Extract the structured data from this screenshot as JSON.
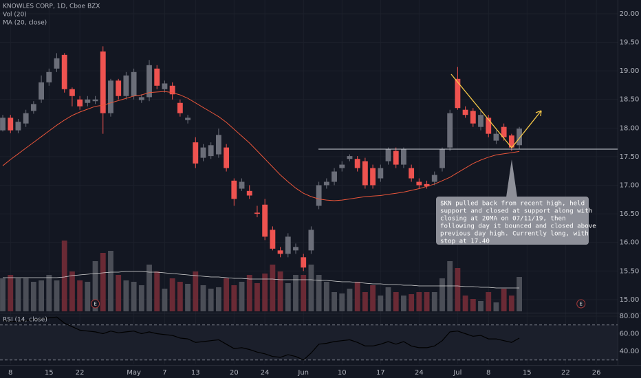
{
  "chart_data": {
    "type": "candlestick",
    "title": "KNOWLES CORP, 1D, Cboe BZX",
    "volume_label": "Vol (20)",
    "ma_label": "MA (20, close)",
    "rsi_label": "RSI (14, close)",
    "up_color": "#6b6e79",
    "down_color": "#ef5350",
    "vol_up_color": "#4b4e57",
    "vol_down_color": "#6a2a35",
    "ma_color": "#e8553a",
    "vol_ma_color": "#d8d8d8",
    "rsi_color": "#000000",
    "grid": true,
    "xlim": [
      -0.36,
      79.75
    ],
    "xticks": [
      {
        "value": 1,
        "label": "8"
      },
      {
        "value": 6,
        "label": "15"
      },
      {
        "value": 10,
        "label": "22"
      },
      {
        "value": 17,
        "label": "May"
      },
      {
        "value": 21,
        "label": "7"
      },
      {
        "value": 25,
        "label": "13"
      },
      {
        "value": 30,
        "label": "20"
      },
      {
        "value": 34,
        "label": "24"
      },
      {
        "value": 39,
        "label": "Jun"
      },
      {
        "value": 44,
        "label": "10"
      },
      {
        "value": 49,
        "label": "17"
      },
      {
        "value": 54,
        "label": "24"
      },
      {
        "value": 59,
        "label": "Jul"
      },
      {
        "value": 63,
        "label": "8"
      },
      {
        "value": 68,
        "label": "15"
      },
      {
        "value": 73,
        "label": "22"
      },
      {
        "value": 77,
        "label": "26"
      }
    ],
    "ylim": [
      14.77,
      20.24
    ],
    "yticks": [
      {
        "value": 15,
        "label": "15.00"
      },
      {
        "value": 15.5,
        "label": "15.50"
      },
      {
        "value": 16,
        "label": "16.00"
      },
      {
        "value": 16.5,
        "label": "16.50"
      },
      {
        "value": 17,
        "label": "17.00"
      },
      {
        "value": 17.5,
        "label": "17.50"
      },
      {
        "value": 18,
        "label": "18.00"
      },
      {
        "value": 18.5,
        "label": "18.50"
      },
      {
        "value": 19,
        "label": "19.00"
      },
      {
        "value": 19.5,
        "label": "19.50"
      },
      {
        "value": 20,
        "label": "20.00"
      }
    ],
    "open": [
      17.96,
      18.18,
      17.96,
      18.08,
      18.3,
      18.5,
      18.8,
      19.04,
      19.28,
      18.68,
      18.5,
      18.44,
      18.47,
      19.34,
      18.26,
      18.83,
      18.56,
      18.56,
      18.49,
      18.54,
      19.04,
      18.68,
      18.74,
      18.44,
      18.14,
      17.75,
      17.48,
      17.51,
      17.54,
      17.66,
      17.08,
      16.94,
      16.9,
      16.52,
      16.66,
      16.22,
      15.86,
      15.8,
      15.86,
      15.74,
      15.86,
      16.64,
      17.0,
      17.06,
      17.3,
      17.46,
      17.46,
      17.42,
      17.3,
      17.12,
      17.42,
      17.6,
      17.36,
      17.3,
      17.06,
      17.02,
      17.06,
      17.3,
      17.66,
      18.86,
      18.32,
      18.3,
      18.02,
      18.18,
      17.78,
      18.02,
      17.87,
      17.7
    ],
    "high": [
      18.23,
      18.23,
      18.16,
      18.32,
      18.47,
      18.92,
      19.04,
      19.31,
      19.31,
      18.71,
      18.56,
      18.56,
      18.56,
      19.43,
      18.86,
      18.86,
      18.98,
      19.04,
      18.59,
      19.19,
      19.1,
      18.83,
      18.8,
      18.5,
      18.23,
      17.84,
      17.72,
      17.75,
      17.99,
      17.72,
      17.12,
      17.12,
      17.0,
      16.64,
      16.76,
      16.28,
      15.92,
      16.16,
      15.98,
      15.8,
      16.28,
      17.06,
      17.12,
      17.3,
      17.42,
      17.54,
      17.51,
      17.48,
      17.36,
      17.36,
      17.66,
      17.66,
      17.66,
      17.36,
      17.12,
      17.08,
      17.24,
      17.66,
      18.32,
      19.07,
      18.38,
      18.35,
      18.3,
      18.23,
      17.96,
      18.08,
      17.9,
      18.02
    ],
    "low": [
      17.94,
      17.91,
      17.91,
      18.02,
      18.25,
      18.44,
      18.74,
      18.98,
      18.62,
      18.38,
      18.32,
      18.38,
      18.42,
      17.9,
      18.2,
      18.5,
      18.5,
      18.5,
      18.44,
      18.47,
      18.68,
      18.62,
      18.5,
      18.2,
      18.08,
      17.3,
      17.42,
      17.46,
      17.48,
      17.24,
      16.64,
      16.9,
      16.76,
      16.44,
      16.04,
      15.86,
      15.74,
      15.74,
      15.8,
      15.5,
      15.8,
      16.58,
      16.94,
      17.0,
      17.24,
      17.42,
      17.24,
      16.94,
      16.94,
      17.06,
      17.36,
      17.3,
      17.3,
      17.06,
      16.94,
      16.94,
      17.0,
      17.24,
      17.6,
      18.32,
      18.18,
      18.02,
      17.96,
      17.84,
      17.72,
      17.78,
      17.6,
      17.63
    ],
    "close": [
      18.18,
      17.96,
      18.11,
      18.26,
      18.42,
      18.8,
      18.98,
      19.22,
      18.68,
      18.56,
      18.38,
      18.5,
      18.5,
      18.26,
      18.83,
      18.56,
      18.92,
      18.98,
      18.54,
      19.1,
      18.74,
      18.78,
      18.59,
      18.26,
      18.18,
      17.38,
      17.66,
      17.7,
      17.88,
      17.3,
      16.76,
      17.06,
      16.82,
      16.5,
      16.1,
      15.89,
      15.8,
      16.1,
      15.92,
      15.56,
      16.22,
      17.0,
      17.06,
      17.24,
      17.36,
      17.51,
      17.3,
      17.0,
      17.0,
      17.3,
      17.63,
      17.36,
      17.63,
      17.12,
      17.0,
      16.98,
      17.18,
      17.63,
      18.26,
      18.35,
      18.23,
      18.08,
      18.23,
      17.9,
      17.9,
      17.84,
      17.66,
      17.99
    ],
    "ma20": [
      17.34,
      17.45,
      17.55,
      17.65,
      17.75,
      17.85,
      17.95,
      18.05,
      18.14,
      18.22,
      18.28,
      18.33,
      18.38,
      18.4,
      18.44,
      18.48,
      18.52,
      18.56,
      18.58,
      18.62,
      18.63,
      18.64,
      18.62,
      18.58,
      18.52,
      18.44,
      18.36,
      18.28,
      18.2,
      18.1,
      17.98,
      17.86,
      17.74,
      17.6,
      17.46,
      17.32,
      17.18,
      17.06,
      16.95,
      16.86,
      16.8,
      16.76,
      16.74,
      16.73,
      16.74,
      16.76,
      16.78,
      16.8,
      16.81,
      16.82,
      16.84,
      16.86,
      16.88,
      16.91,
      16.94,
      16.98,
      17.02,
      17.08,
      17.14,
      17.22,
      17.3,
      17.38,
      17.44,
      17.49,
      17.53,
      17.55,
      17.57,
      17.59
    ],
    "vlim": [
      0,
      100
    ],
    "volume": [
      48,
      53,
      48,
      48,
      43,
      45,
      53,
      45,
      103,
      58,
      45,
      43,
      73,
      85,
      88,
      53,
      45,
      43,
      38,
      68,
      58,
      33,
      48,
      43,
      40,
      58,
      38,
      33,
      35,
      48,
      38,
      43,
      53,
      41,
      55,
      68,
      58,
      41,
      53,
      53,
      68,
      53,
      43,
      28,
      26,
      33,
      43,
      28,
      38,
      23,
      35,
      28,
      23,
      25,
      28,
      28,
      28,
      48,
      73,
      63,
      23,
      18,
      15,
      28,
      13,
      33,
      23,
      50
    ],
    "vol_ma": [
      49,
      49,
      49,
      49,
      49,
      49,
      49,
      49,
      50,
      52,
      53,
      54,
      55,
      56,
      57,
      57,
      58,
      58,
      58,
      57,
      57,
      56,
      55,
      54,
      53,
      52,
      51,
      50,
      50,
      49,
      48,
      48,
      47,
      47,
      47,
      47,
      46,
      46,
      46,
      46,
      46,
      45,
      45,
      44,
      43,
      43,
      42,
      41,
      40,
      40,
      39,
      39,
      38,
      38,
      37,
      37,
      37,
      37,
      37,
      37,
      36,
      36,
      35,
      35,
      34,
      34,
      34,
      34
    ],
    "rsi_ylim": [
      25.1,
      82.35
    ],
    "rsi_ticks": [
      {
        "value": 40,
        "label": "40.00"
      },
      {
        "value": 60,
        "label": "60.00"
      },
      {
        "value": 80,
        "label": "80.00"
      }
    ],
    "rsi_bands": [
      30,
      70
    ],
    "rsi": [
      75,
      74,
      74,
      75,
      76,
      77,
      78,
      79,
      72,
      68,
      64,
      63,
      62,
      60,
      63,
      61,
      62,
      63,
      60,
      62,
      60,
      59,
      58,
      55,
      54,
      50,
      51,
      52,
      53,
      48,
      43,
      44,
      42,
      39,
      37,
      34,
      33,
      36,
      34,
      30,
      38,
      48,
      49,
      51,
      52,
      53,
      50,
      46,
      46,
      48,
      51,
      48,
      51,
      46,
      44,
      44,
      46,
      52,
      62,
      63,
      60,
      57,
      58,
      54,
      54,
      52,
      50,
      55
    ],
    "earnings_markers": [
      {
        "label": "E",
        "x": 12
      },
      {
        "label": "E",
        "x": 75
      }
    ],
    "annotation": [
      "$KN pulled back from recent high, held",
      "support and closed at support along with",
      "closing at 20MA on 07/11/19, then",
      "following day it bounced and closed above",
      "previous day high. Currently long, with",
      "stop at 17.40"
    ]
  }
}
